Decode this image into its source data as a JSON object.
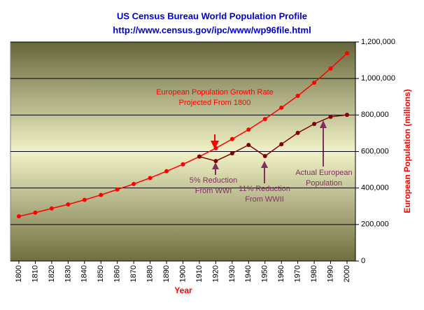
{
  "chart_data": {
    "type": "line",
    "title": "US Census Bureau World Population Profile",
    "subtitle": "http://www.census.gov/ipc/www/wp96file.html",
    "x_label": "Year",
    "y_label": "European Population (millions)",
    "categories": [
      "1800",
      "1810",
      "1820",
      "1830",
      "1840",
      "1850",
      "1860",
      "1870",
      "1880",
      "1890",
      "1900",
      "1910",
      "1920",
      "1930",
      "1940",
      "1950",
      "1960",
      "1970",
      "1980",
      "1990",
      "2000"
    ],
    "series": [
      {
        "color": "#ff0000",
        "values": [
          245000,
          265000,
          288000,
          310000,
          335000,
          362000,
          392000,
          422000,
          455000,
          492000,
          530000,
          572000,
          618000,
          668000,
          720000,
          778000,
          840000,
          905000,
          977000,
          1055000,
          1138000
        ]
      },
      {
        "color": "#800000",
        "values": [
          null,
          null,
          null,
          null,
          null,
          null,
          null,
          null,
          null,
          null,
          null,
          572000,
          548000,
          590000,
          636000,
          575000,
          640000,
          702000,
          751000,
          790000,
          801000
        ]
      }
    ],
    "ylim": [
      0,
      1200000
    ],
    "yticks": [
      0,
      {
        "value": 200000,
        "label": "200,000"
      },
      {
        "value": 400000,
        "label": "400,000"
      },
      {
        "value": 600000,
        "label": "600,000"
      },
      {
        "value": 800000,
        "label": "800,000"
      },
      {
        "value": 1000000,
        "label": "1,000,000"
      },
      {
        "value": 1200000,
        "label": "1,200,000"
      }
    ],
    "grid": true,
    "annotations": [
      {
        "lines": [
          "European Population Growth Rate",
          "Projected From 1800"
        ],
        "color": "#ff0000"
      },
      {
        "lines": [
          "5% Reduction",
          "From WWI"
        ],
        "color": "#803060"
      },
      {
        "lines": [
          "11% Reduction",
          "From WWII"
        ],
        "color": "#803060"
      },
      {
        "lines": [
          "Actual European",
          "Population"
        ],
        "color": "#803060"
      }
    ]
  }
}
